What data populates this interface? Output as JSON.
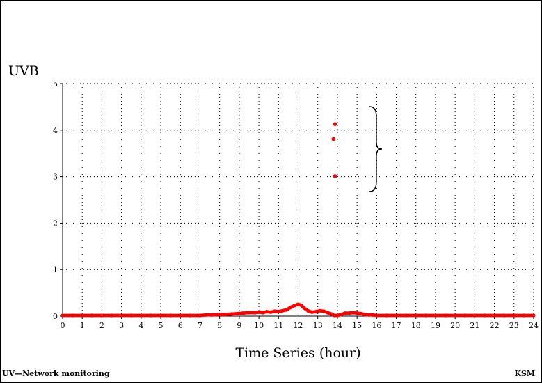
{
  "chart_data": {
    "type": "scatter",
    "ylabel": "UVB",
    "xlabel": "Time Series (hour)",
    "xlim": [
      0,
      24
    ],
    "ylim": [
      0,
      5
    ],
    "x_ticks": [
      0,
      1,
      2,
      3,
      4,
      5,
      6,
      7,
      8,
      9,
      10,
      11,
      12,
      13,
      14,
      15,
      16,
      17,
      18,
      19,
      20,
      21,
      22,
      23,
      24
    ],
    "y_ticks": [
      0,
      1,
      2,
      3,
      4,
      5
    ],
    "grid": true,
    "series": [
      {
        "color": "#ff0000",
        "points": [
          [
            0,
            0
          ],
          [
            0.5,
            0
          ],
          [
            1,
            0
          ],
          [
            1.5,
            0
          ],
          [
            2,
            0
          ],
          [
            2.5,
            0
          ],
          [
            3,
            0
          ],
          [
            3.5,
            0
          ],
          [
            4,
            0
          ],
          [
            4.5,
            0
          ],
          [
            5,
            0
          ],
          [
            5.5,
            0
          ],
          [
            6,
            0
          ],
          [
            6.5,
            0
          ],
          [
            7,
            0
          ],
          [
            7.3,
            0.01
          ],
          [
            7.6,
            0.01
          ],
          [
            8,
            0.02
          ],
          [
            8.3,
            0.02
          ],
          [
            8.6,
            0.03
          ],
          [
            8.9,
            0.04
          ],
          [
            9.2,
            0.05
          ],
          [
            9.5,
            0.06
          ],
          [
            9.8,
            0.06
          ],
          [
            10.0,
            0.07
          ],
          [
            10.2,
            0.06
          ],
          [
            10.4,
            0.08
          ],
          [
            10.6,
            0.07
          ],
          [
            10.8,
            0.09
          ],
          [
            11.0,
            0.08
          ],
          [
            11.2,
            0.1
          ],
          [
            11.4,
            0.12
          ],
          [
            11.6,
            0.17
          ],
          [
            11.8,
            0.21
          ],
          [
            12.0,
            0.24
          ],
          [
            12.15,
            0.22
          ],
          [
            12.3,
            0.16
          ],
          [
            12.5,
            0.1
          ],
          [
            12.7,
            0.07
          ],
          [
            12.9,
            0.08
          ],
          [
            13.1,
            0.1
          ],
          [
            13.3,
            0.09
          ],
          [
            13.5,
            0.06
          ],
          [
            13.7,
            0.03
          ],
          [
            13.85,
            0.0
          ],
          [
            14.0,
            0.0
          ],
          [
            14.2,
            0.02
          ],
          [
            14.4,
            0.05
          ],
          [
            14.6,
            0.05
          ],
          [
            14.8,
            0.06
          ],
          [
            15.0,
            0.05
          ],
          [
            15.2,
            0.04
          ],
          [
            15.4,
            0.02
          ],
          [
            15.6,
            0.01
          ],
          [
            15.8,
            0.01
          ],
          [
            16,
            0
          ],
          [
            16.5,
            0
          ],
          [
            17,
            0
          ],
          [
            17.5,
            0
          ],
          [
            18,
            0
          ],
          [
            18.5,
            0
          ],
          [
            19,
            0
          ],
          [
            19.5,
            0
          ],
          [
            20,
            0
          ],
          [
            20.5,
            0
          ],
          [
            21,
            0
          ],
          [
            21.5,
            0
          ],
          [
            22,
            0
          ],
          [
            22.5,
            0
          ],
          [
            23,
            0
          ],
          [
            23.5,
            0
          ],
          [
            24,
            0
          ]
        ],
        "outliers": [
          [
            13.88,
            4.13
          ],
          [
            13.8,
            3.81
          ],
          [
            13.88,
            3.01
          ]
        ]
      }
    ],
    "annotation": "brace-around-outliers",
    "footer_left": "UV—Network monitoring",
    "footer_right": "KSM"
  }
}
